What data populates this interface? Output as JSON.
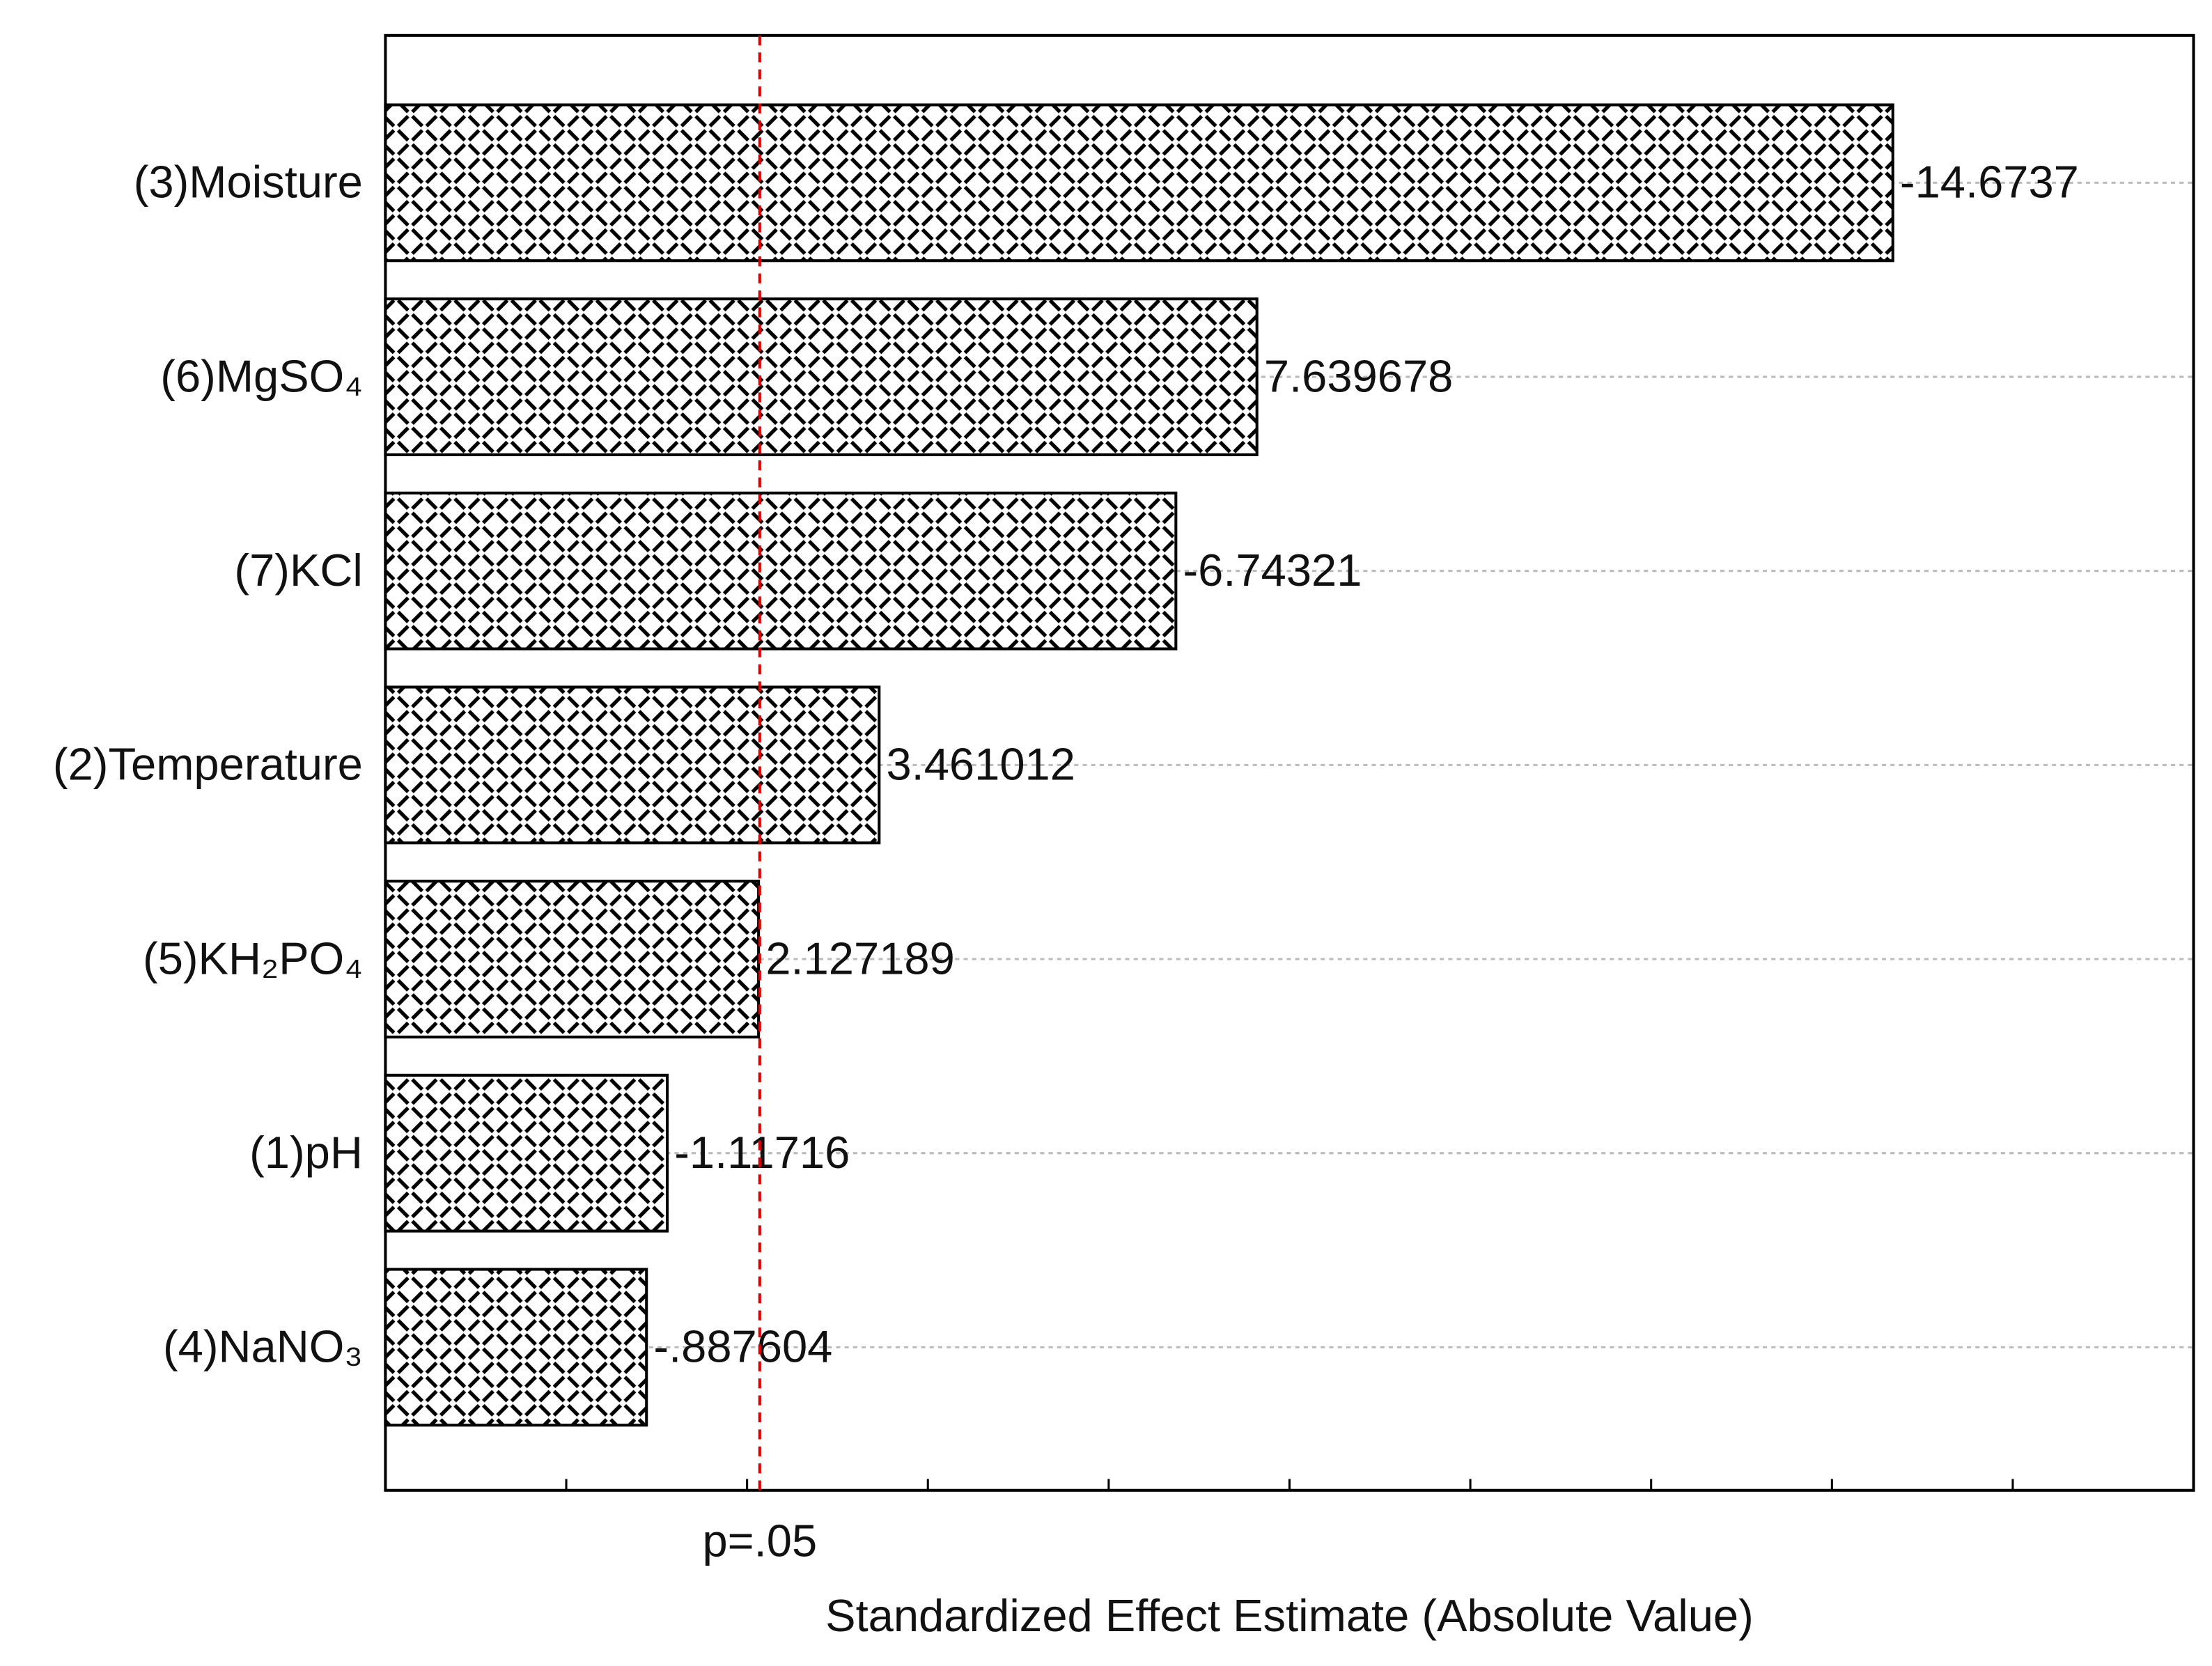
{
  "chart_data": {
    "type": "bar",
    "orientation": "horizontal",
    "xlabel": "Standardized Effect Estimate (Absolute Value)",
    "categories": [
      "(3)Moisture",
      "(6)MgSO₄",
      "(7)KCl",
      "(2)Temperature",
      "(5)KH₂PO₄",
      "(1)pH",
      "(4)NaNO₃"
    ],
    "values": [
      14.6737,
      7.639678,
      6.74321,
      3.461012,
      2.127189,
      1.11716,
      0.887604
    ],
    "value_labels": [
      "-14.6737",
      "7.639678",
      "-6.74321",
      "3.461012",
      "2.127189",
      "-1.11716",
      "-.887604"
    ],
    "color": "#000000",
    "xlim": [
      -2,
      18
    ],
    "xticks": [
      0,
      2,
      4,
      6,
      8,
      10,
      12,
      14,
      16
    ],
    "reference_line": {
      "value": 2.14,
      "label": "p=.05",
      "color": "#e00000"
    },
    "grid": true
  }
}
